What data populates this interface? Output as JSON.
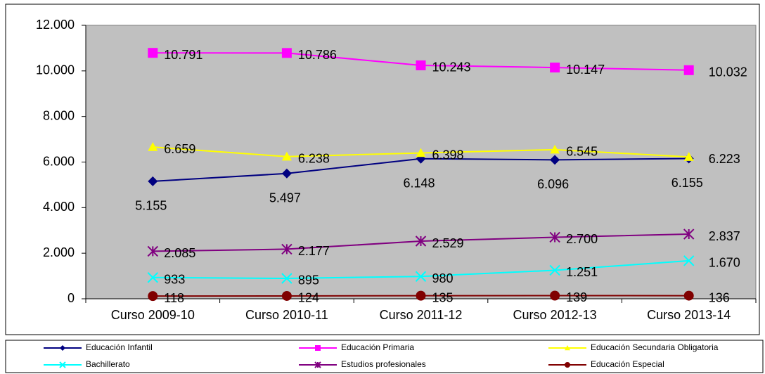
{
  "chart_data": {
    "type": "line",
    "categories": [
      "Curso 2009-10",
      "Curso 2010-11",
      "Curso 2011-12",
      "Curso 2012-13",
      "Curso 2013-14"
    ],
    "series": [
      {
        "name": "Educación Infantil",
        "color": "#000080",
        "marker": "diamond",
        "values": [
          5155,
          5497,
          6148,
          6096,
          6155
        ],
        "value_labels": [
          "5.155",
          "5.497",
          "6.148",
          "6.096",
          "6.155"
        ]
      },
      {
        "name": "Educación Primaria",
        "color": "#ff00ff",
        "marker": "square",
        "values": [
          10791,
          10786,
          10243,
          10147,
          10032
        ],
        "value_labels": [
          "10.791",
          "10.786",
          "10.243",
          "10.147",
          "10.032"
        ]
      },
      {
        "name": "Educación Secundaria Obligatoria",
        "color": "#ffff00",
        "marker": "triangle",
        "values": [
          6659,
          6238,
          6398,
          6545,
          6223
        ],
        "value_labels": [
          "6.659",
          "6.238",
          "6.398",
          "6.545",
          "6.223"
        ]
      },
      {
        "name": "Bachillerato",
        "color": "#00ffff",
        "marker": "x",
        "values": [
          933,
          895,
          980,
          1251,
          1670
        ],
        "value_labels": [
          "933",
          "895",
          "980",
          "1.251",
          "1.670"
        ]
      },
      {
        "name": "Estudios profesionales",
        "color": "#800080",
        "marker": "star",
        "values": [
          2085,
          2177,
          2529,
          2700,
          2837
        ],
        "value_labels": [
          "2.085",
          "2.177",
          "2.529",
          "2.700",
          "2.837"
        ]
      },
      {
        "name": "Educación Especial",
        "color": "#800000",
        "marker": "circle",
        "values": [
          118,
          124,
          135,
          139,
          136
        ],
        "value_labels": [
          "118",
          "124",
          "135",
          "139",
          "136"
        ]
      }
    ],
    "ylim": [
      0,
      12000
    ],
    "yticks": [
      0,
      {
        "value": 2000,
        "label": "2.000"
      },
      {
        "value": 4000,
        "label": "4.000"
      },
      {
        "value": 6000,
        "label": "6.000"
      },
      {
        "value": 8000,
        "label": "8.000"
      },
      {
        "value": 10000,
        "label": "10.000"
      },
      {
        "value": 12000,
        "label": "12.000"
      }
    ],
    "grid": false,
    "legend": "bottom"
  }
}
